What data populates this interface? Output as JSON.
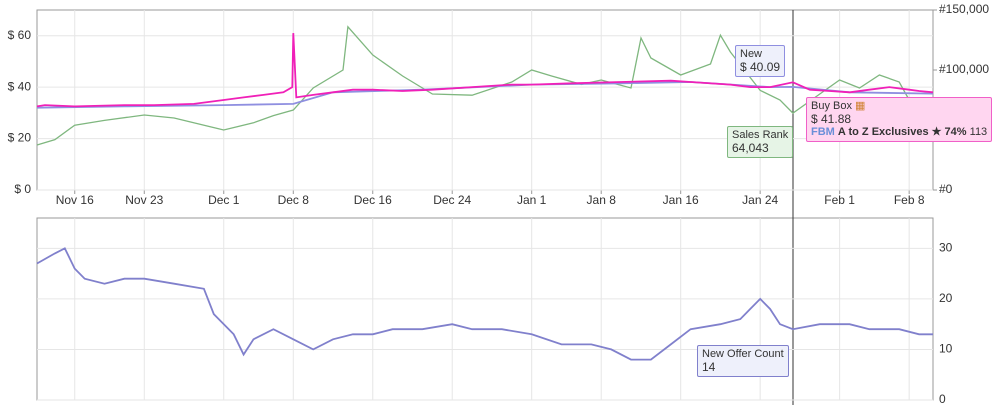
{
  "charts": [
    {
      "type": "line",
      "grid": true,
      "xlim": [
        -3.8,
        86.4
      ],
      "xticks": [
        {
          "value": 0,
          "label": "Nov 16"
        },
        {
          "value": 7,
          "label": "Nov 23"
        },
        {
          "value": 15,
          "label": "Dec 1"
        },
        {
          "value": 22,
          "label": "Dec 8"
        },
        {
          "value": 30,
          "label": "Dec 16"
        },
        {
          "value": 38,
          "label": "Dec 24"
        },
        {
          "value": 46,
          "label": "Jan 1"
        },
        {
          "value": 53,
          "label": "Jan 8"
        },
        {
          "value": 61,
          "label": "Jan 16"
        },
        {
          "value": 69,
          "label": "Jan 24"
        },
        {
          "value": 77,
          "label": "Feb 1"
        },
        {
          "value": 84,
          "label": "Feb 8"
        }
      ],
      "ylim": [
        0,
        70
      ],
      "yticks": [
        {
          "value": 0,
          "label": "$ 0"
        },
        {
          "value": 20,
          "label": "$ 20"
        },
        {
          "value": 40,
          "label": "$ 40"
        },
        {
          "value": 60,
          "label": "$ 60"
        }
      ],
      "y2lim": [
        0,
        150000
      ],
      "y2ticks": [
        {
          "value": 0,
          "label": "#0"
        },
        {
          "value": 100000,
          "label": "#100,000"
        },
        {
          "value": 150000,
          "label": "#150,000"
        }
      ],
      "series": [
        {
          "name": "Sales Rank",
          "color": "#7fb77f",
          "axis": "y2",
          "tooltip": "64,043",
          "x": [
            -3.8,
            -2,
            0,
            3,
            7,
            10,
            15,
            18,
            20,
            22,
            24,
            27,
            27.5,
            30,
            33,
            36,
            40,
            44,
            46,
            48,
            51,
            53,
            56,
            57,
            58,
            61,
            64,
            65,
            66,
            69,
            71,
            72.3,
            75,
            77,
            79,
            81,
            83,
            84,
            86.4
          ],
          "values": [
            37500,
            42000,
            54000,
            58000,
            62500,
            60000,
            50000,
            56000,
            62000,
            66700,
            85000,
            100000,
            136000,
            112500,
            95000,
            80000,
            79000,
            90000,
            100000,
            95000,
            88000,
            91700,
            85000,
            126700,
            110000,
            95800,
            105000,
            129000,
            115000,
            83000,
            75000,
            64043,
            80000,
            91700,
            85000,
            95800,
            90000,
            75000,
            70800
          ]
        },
        {
          "name": "New",
          "color": "#8f8fe0",
          "tooltip": "$ 40.09",
          "x": [
            -3.8,
            5,
            15,
            22,
            26,
            35,
            46,
            55,
            62,
            70,
            72.3,
            78,
            86.4
          ],
          "values": [
            32,
            32.5,
            33,
            33.5,
            38,
            39,
            41,
            41.5,
            42,
            40,
            40.09,
            38,
            37.5
          ]
        },
        {
          "name": "Buy Box",
          "color": "#f020b8",
          "tooltip": "$ 41.88",
          "seller_type": "FBM",
          "seller": "A to Z Exclusives",
          "rating": "★ 74%",
          "rating_count": 113,
          "x": [
            -3.8,
            -3,
            0,
            5,
            8,
            12,
            15,
            17,
            19,
            21,
            21.9,
            22,
            22.3,
            24,
            26,
            28,
            30,
            33,
            36,
            40,
            44,
            46,
            50,
            55,
            60,
            62,
            66,
            68,
            70,
            72.3,
            74,
            76,
            78,
            80,
            82,
            84,
            85,
            86.4
          ],
          "values": [
            32.5,
            33,
            32.5,
            33,
            33,
            33.5,
            35,
            36,
            37,
            38,
            40,
            61,
            36,
            37,
            38,
            39,
            39,
            38.5,
            39,
            40,
            41,
            41,
            41.5,
            42,
            42.5,
            42,
            41,
            40,
            40,
            41.88,
            39,
            38.5,
            38,
            39,
            40,
            39,
            38.5,
            38
          ]
        }
      ]
    },
    {
      "type": "line",
      "grid": true,
      "yaxis_position": "right",
      "xlim": [
        -3.8,
        86.4
      ],
      "ylim": [
        0,
        36
      ],
      "yticks": [
        0,
        10,
        20,
        30
      ],
      "series": [
        {
          "name": "New Offer Count",
          "color": "#8080cc",
          "tooltip": 14,
          "x": [
            -3.8,
            -2,
            -1,
            0,
            1,
            3,
            5,
            7,
            10,
            13,
            14,
            16,
            17,
            18,
            20,
            22,
            24,
            26,
            28,
            30,
            32,
            35,
            38,
            40,
            43,
            46,
            49,
            52,
            54,
            56,
            58,
            60,
            62,
            65,
            67,
            68,
            69,
            70,
            71,
            72.3,
            75,
            78,
            80,
            83,
            85,
            86.4
          ],
          "values": [
            27,
            29,
            30,
            26,
            24,
            23,
            24,
            24,
            23,
            22,
            17,
            13,
            9,
            12,
            14,
            12,
            10,
            12,
            13,
            13,
            14,
            14,
            15,
            14,
            14,
            13,
            11,
            11,
            10,
            8,
            8,
            11,
            14,
            15,
            16,
            18,
            20,
            18,
            15,
            14,
            15,
            15,
            14,
            14,
            13,
            13
          ]
        }
      ]
    }
  ]
}
